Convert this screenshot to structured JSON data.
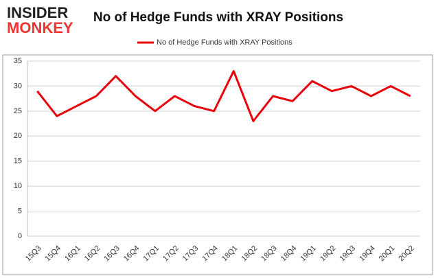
{
  "chart_data": {
    "type": "line",
    "logo": [
      "INSIDER",
      "MONKEY"
    ],
    "title": "No of Hedge Funds with XRAY Positions",
    "categories": [
      "15Q3",
      "15Q4",
      "16Q1",
      "16Q2",
      "16Q3",
      "16Q4",
      "17Q1",
      "17Q2",
      "17Q3",
      "17Q4",
      "18Q1",
      "18Q2",
      "18Q3",
      "18Q4",
      "19Q1",
      "19Q2",
      "19Q3",
      "19Q4",
      "20Q1",
      "20Q2"
    ],
    "series": [
      {
        "name": "No of Hedge Funds with XRAY Positions",
        "color": "#e8000b",
        "values": [
          29,
          24,
          26,
          28,
          32,
          28,
          25,
          28,
          26,
          25,
          33,
          23,
          28,
          27,
          31,
          29,
          30,
          28,
          30,
          28
        ]
      }
    ],
    "ylim": [
      0,
      35
    ],
    "yticks": [
      0,
      5,
      10,
      15,
      20,
      25,
      30,
      35
    ],
    "grid": true,
    "legend": "top"
  }
}
